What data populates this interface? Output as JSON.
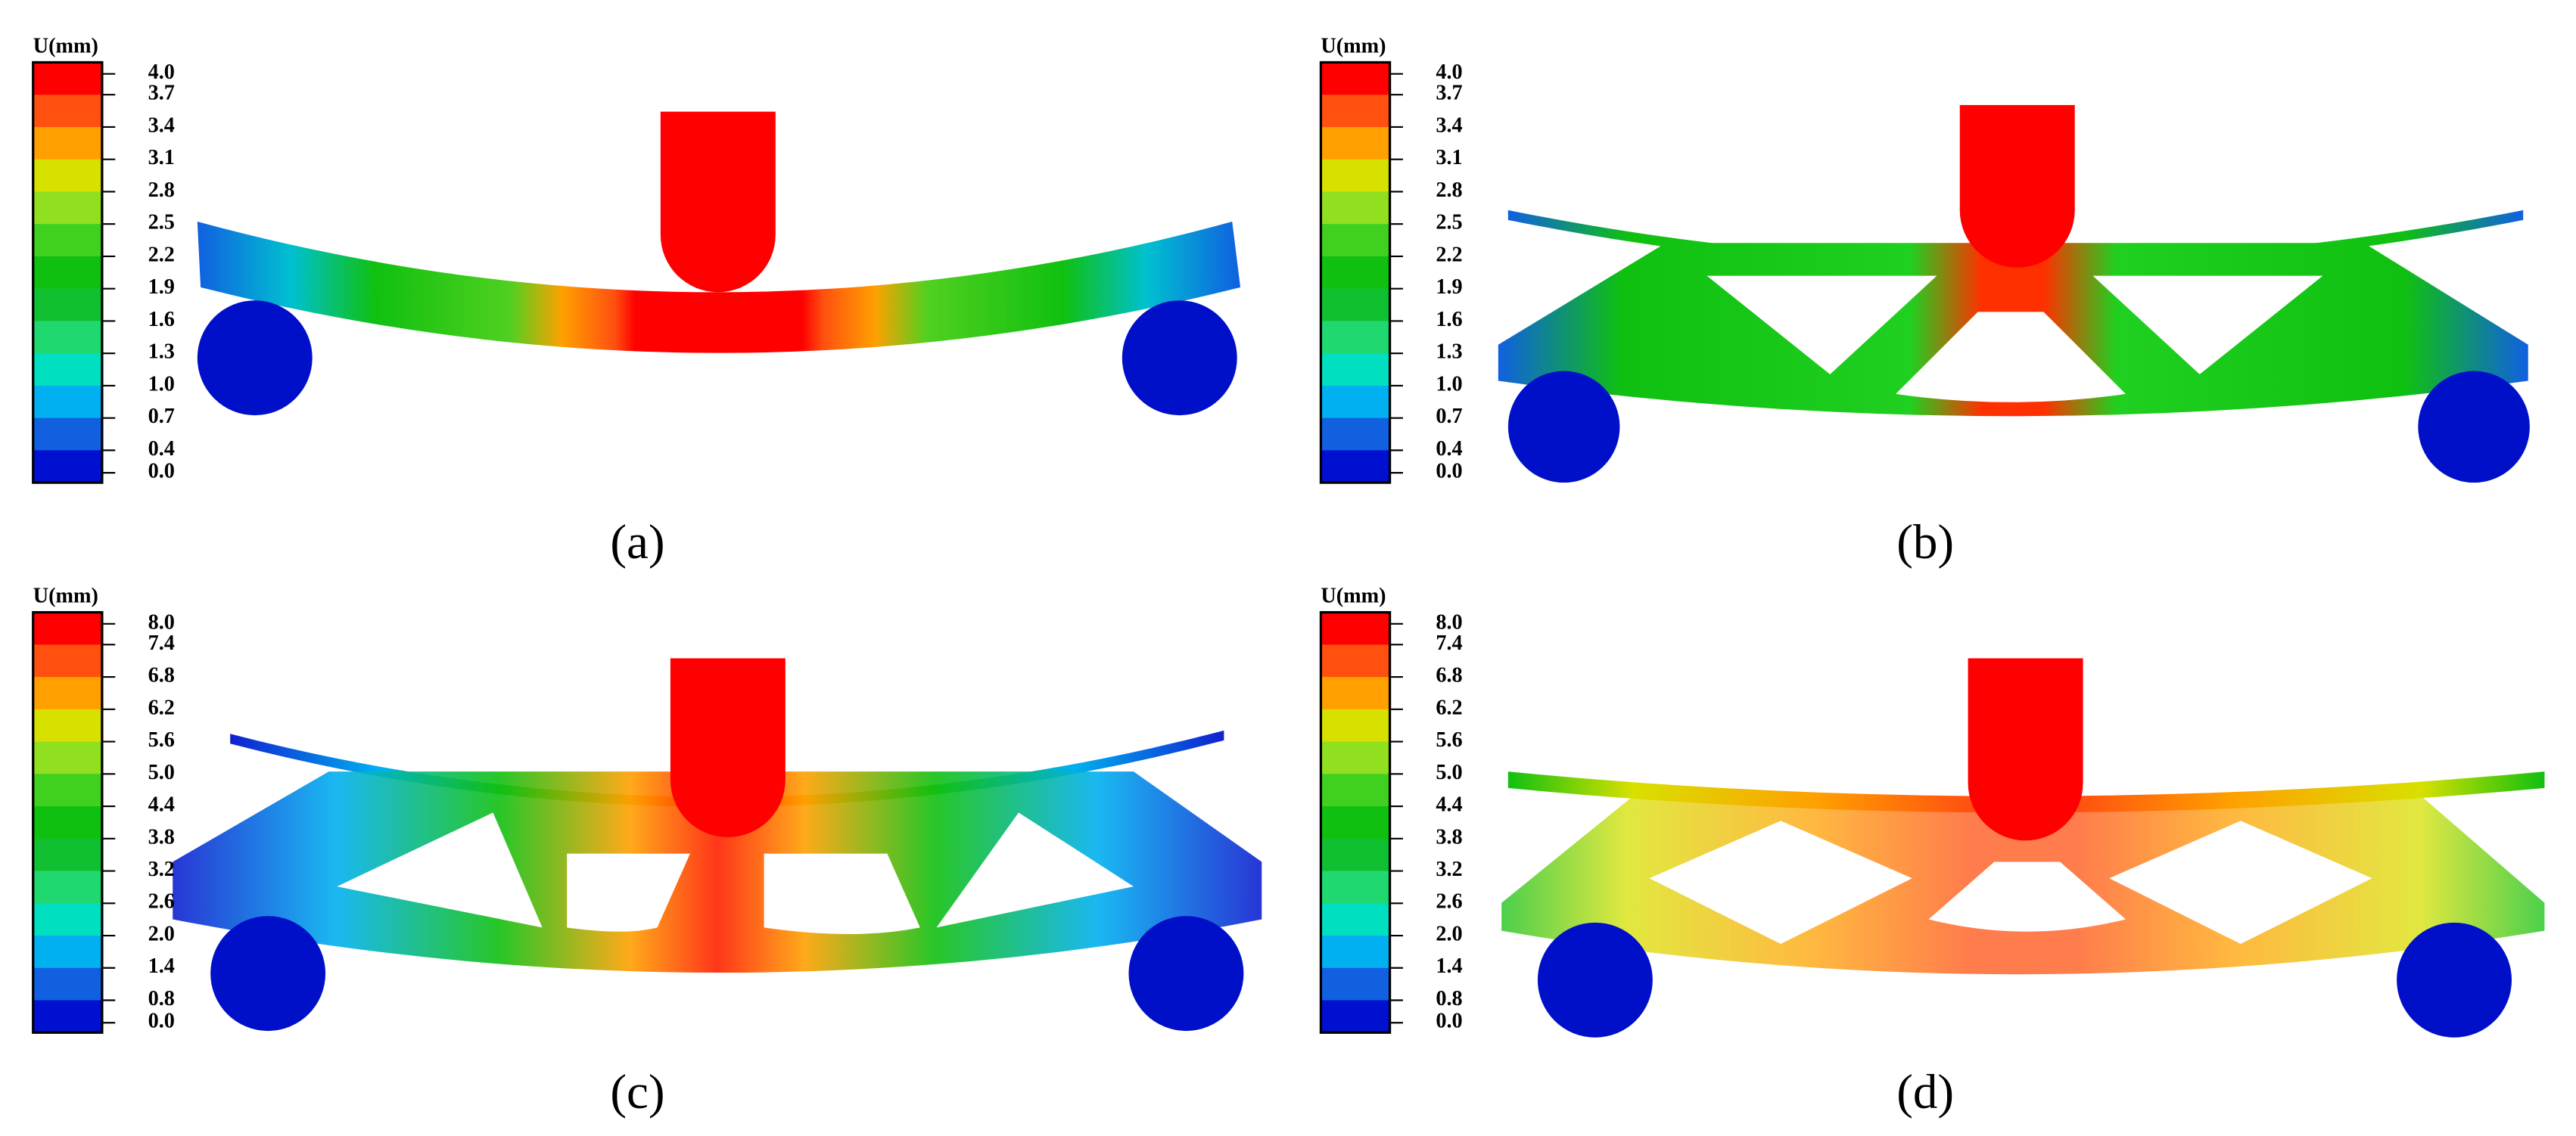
{
  "panels": [
    {
      "legend": {
        "title": "U(mm)",
        "ticks": [
          "4.0",
          "3.7",
          "3.4",
          "3.1",
          "2.8",
          "2.5",
          "2.2",
          "1.9",
          "1.6",
          "1.3",
          "1.0",
          "0.7",
          "0.4",
          "0.0"
        ]
      },
      "caption": "(a)"
    },
    {
      "legend": {
        "title": "U(mm)",
        "ticks": [
          "4.0",
          "3.7",
          "3.4",
          "3.1",
          "2.8",
          "2.5",
          "2.2",
          "1.9",
          "1.6",
          "1.3",
          "1.0",
          "0.7",
          "0.4",
          "0.0"
        ]
      },
      "caption": "(b)"
    },
    {
      "legend": {
        "title": "U(mm)",
        "ticks": [
          "8.0",
          "7.4",
          "6.8",
          "6.2",
          "5.6",
          "5.0",
          "4.4",
          "3.8",
          "3.2",
          "2.6",
          "2.0",
          "1.4",
          "0.8",
          "0.0"
        ]
      },
      "caption": "(c)"
    },
    {
      "legend": {
        "title": "U(mm)",
        "ticks": [
          "8.0",
          "7.4",
          "6.8",
          "6.2",
          "5.6",
          "5.0",
          "4.4",
          "3.8",
          "3.2",
          "2.6",
          "2.0",
          "1.4",
          "0.8",
          "0.0"
        ]
      },
      "caption": "(d)"
    }
  ],
  "legend_colors": [
    "#ff0000",
    "#ff5010",
    "#ffa000",
    "#d8e000",
    "#90e020",
    "#40d020",
    "#10c010",
    "#10c030",
    "#20d870",
    "#00e0c0",
    "#00b0f0",
    "#1060e0",
    "#0010d0"
  ]
}
